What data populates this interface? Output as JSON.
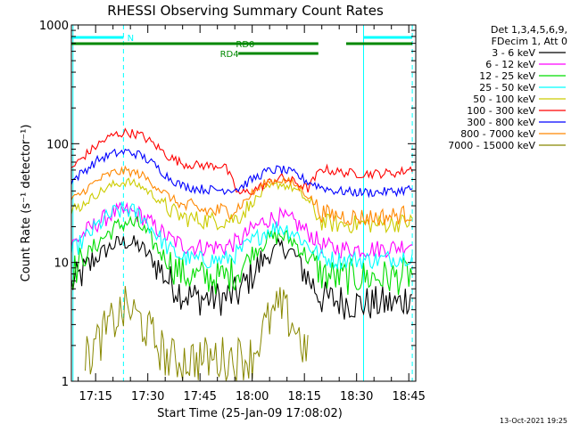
{
  "footer_timestamp": "13-Oct-2021 19:25",
  "colors": {
    "s3_6": "#000000",
    "s6_12": "#ff00ff",
    "s12_25": "#00dd00",
    "s25_50": "#00ffff",
    "s50_100": "#cccc00",
    "s100_300": "#ff0000",
    "s300_800": "#0000ff",
    "s800_7000": "#ff8800",
    "s7000_15000": "#888800",
    "flags_green": "#008800",
    "flags_cyan": "#00ffff"
  },
  "chart_data": {
    "type": "line",
    "title": "RHESSI Observing Summary Count Rates",
    "xlabel": "Start Time (25-Jan-09 17:08:02)",
    "ylabel": "Count Rate (s⁻¹ detector⁻¹)",
    "yscale": "log",
    "ylim": [
      1,
      1000
    ],
    "y_ticks": [
      "1",
      "10",
      "100",
      "1000"
    ],
    "xlim": [
      "17:08:02",
      "18:47:00"
    ],
    "x_ticks": [
      "17:15",
      "17:30",
      "17:45",
      "18:00",
      "18:15",
      "18:30",
      "18:45"
    ],
    "legend": {
      "position": "right",
      "header": [
        "Det 1,3,4,5,6,9,",
        "FDecim 1, Att 0"
      ]
    },
    "flags": [
      {
        "label": "N",
        "segments": [
          [
            "17:08",
            "17:23"
          ],
          [
            "18:32",
            "18:46"
          ]
        ]
      },
      {
        "label": "RD0",
        "segments": [
          [
            "17:08",
            "18:19"
          ],
          [
            "18:27",
            "18:46"
          ]
        ]
      },
      {
        "label": "RD4",
        "segments": [
          [
            "17:56",
            "18:19"
          ]
        ]
      }
    ],
    "series": [
      {
        "name": "3 - 6 keV",
        "color_key": "s3_6",
        "x": [
          "17:08",
          "17:12",
          "17:16",
          "17:20",
          "17:24",
          "17:28",
          "17:32",
          "17:36",
          "17:40",
          "17:44",
          "17:48",
          "17:52",
          "17:56",
          "18:00",
          "18:04",
          "18:08",
          "18:12",
          "18:16",
          "18:20",
          "18:24",
          "18:30",
          "18:36",
          "18:42",
          "18:46"
        ],
        "values": [
          6.5,
          8.5,
          11.5,
          14,
          15,
          13.5,
          10,
          7,
          5.5,
          5,
          5,
          5,
          5.5,
          8,
          11,
          13.5,
          12,
          7.5,
          5,
          4.8,
          4.5,
          4.5,
          4.5,
          5.5
        ]
      },
      {
        "name": "6 - 12 keV",
        "color_key": "s6_12",
        "x": [
          "17:08",
          "17:12",
          "17:16",
          "17:20",
          "17:24",
          "17:28",
          "17:32",
          "17:36",
          "17:40",
          "17:44",
          "17:48",
          "17:52",
          "17:56",
          "18:00",
          "18:04",
          "18:08",
          "18:12",
          "18:16",
          "18:20",
          "18:24",
          "18:30",
          "18:36",
          "18:42",
          "18:46"
        ],
        "values": [
          14,
          18,
          22,
          26,
          27,
          25,
          20,
          16,
          14,
          13.5,
          13.5,
          13.5,
          15,
          19,
          23,
          24,
          22,
          18,
          14,
          13,
          13,
          13,
          13.5,
          14.5
        ]
      },
      {
        "name": "12 - 25 keV",
        "color_key": "s12_25",
        "x": [
          "17:08",
          "17:12",
          "17:16",
          "17:20",
          "17:24",
          "17:28",
          "17:32",
          "17:36",
          "17:40",
          "17:44",
          "17:48",
          "17:52",
          "17:56",
          "18:00",
          "18:04",
          "18:08",
          "18:12",
          "18:16",
          "18:20",
          "18:24",
          "18:30",
          "18:36",
          "18:42",
          "18:46"
        ],
        "values": [
          8,
          11,
          15,
          19,
          22,
          20,
          14,
          10,
          8,
          7.5,
          7.5,
          7.5,
          8.5,
          12,
          15.5,
          17,
          15,
          11,
          8,
          7.5,
          7.5,
          7.5,
          7.5,
          8
        ]
      },
      {
        "name": "25 - 50 keV",
        "color_key": "s25_50",
        "x": [
          "17:08",
          "17:12",
          "17:16",
          "17:20",
          "17:24",
          "17:28",
          "17:32",
          "17:36",
          "17:40",
          "17:44",
          "17:48",
          "17:52",
          "17:56",
          "18:00",
          "18:04",
          "18:08",
          "18:12",
          "18:16",
          "18:20",
          "18:24",
          "18:30",
          "18:36",
          "18:42",
          "18:46"
        ],
        "values": [
          12,
          16,
          21,
          26,
          28,
          25,
          18,
          13,
          11,
          10.5,
          10.5,
          10.5,
          12,
          15,
          18.5,
          20,
          18,
          14,
          11,
          10.5,
          10.5,
          10.5,
          11,
          11.5
        ]
      },
      {
        "name": "50 - 100 keV",
        "color_key": "s50_100",
        "x": [
          "17:08",
          "17:12",
          "17:16",
          "17:20",
          "17:24",
          "17:28",
          "17:32",
          "17:36",
          "17:40",
          "17:44",
          "17:48",
          "17:52",
          "17:56",
          "18:00",
          "18:04",
          "18:08",
          "18:12",
          "18:16",
          "18:20",
          "18:24",
          "18:30",
          "18:36",
          "18:42",
          "18:46"
        ],
        "values": [
          26,
          32,
          39,
          45,
          48,
          44,
          36,
          28,
          24,
          23,
          22.5,
          22.5,
          24,
          32,
          41,
          46,
          42,
          33,
          22,
          21,
          21,
          21,
          21.5,
          22
        ]
      },
      {
        "name": "100 - 300 keV",
        "color_key": "s100_300",
        "x": [
          "17:08",
          "17:12",
          "17:16",
          "17:20",
          "17:24",
          "17:28",
          "17:32",
          "17:36",
          "17:40",
          "17:44",
          "17:48",
          "17:52",
          "17:56",
          "18:00",
          "18:04",
          "18:08",
          "18:12",
          "18:16",
          "18:20",
          "18:24",
          "18:30",
          "18:36",
          "18:42",
          "18:46"
        ],
        "values": [
          62,
          80,
          100,
          118,
          125,
          118,
          98,
          78,
          68,
          66,
          65,
          66,
          38,
          40,
          46,
          52,
          48,
          42,
          62,
          58,
          56,
          56,
          57,
          62
        ]
      },
      {
        "name": "300 - 800 keV",
        "color_key": "s300_800",
        "x": [
          "17:08",
          "17:12",
          "17:16",
          "17:20",
          "17:24",
          "17:28",
          "17:32",
          "17:36",
          "17:40",
          "17:44",
          "17:48",
          "17:52",
          "17:56",
          "18:00",
          "18:04",
          "18:08",
          "18:12",
          "18:16",
          "18:20",
          "18:24",
          "18:30",
          "18:36",
          "18:42",
          "18:46"
        ],
        "values": [
          48,
          60,
          74,
          82,
          86,
          80,
          66,
          52,
          44,
          42,
          41,
          41,
          42,
          50,
          58,
          61,
          56,
          48,
          43,
          40,
          39,
          39,
          40,
          42
        ]
      },
      {
        "name": "800 - 7000 keV",
        "color_key": "s800_7000",
        "x": [
          "17:08",
          "17:12",
          "17:16",
          "17:20",
          "17:24",
          "17:28",
          "17:32",
          "17:36",
          "17:40",
          "17:44",
          "17:48",
          "17:52",
          "17:56",
          "18:00",
          "18:04",
          "18:08",
          "18:12",
          "18:16",
          "18:20",
          "18:24",
          "18:30",
          "18:36",
          "18:42",
          "18:46"
        ],
        "values": [
          33,
          41,
          50,
          57,
          59,
          55,
          45,
          36,
          30,
          28,
          27,
          27,
          29,
          38,
          47,
          50,
          46,
          37,
          26,
          25,
          24,
          24,
          25,
          26
        ]
      },
      {
        "name": "7000 - 15000 keV",
        "color_key": "s7000_15000",
        "x": [
          "17:12",
          "17:16",
          "17:20",
          "17:24",
          "17:28",
          "17:32",
          "17:36",
          "18:00",
          "18:04",
          "18:08",
          "18:12",
          "18:16"
        ],
        "values": [
          1.5,
          2.2,
          3.2,
          4.2,
          3.2,
          2.2,
          1.5,
          1.6,
          3,
          4.2,
          3,
          1.6
        ]
      }
    ]
  }
}
